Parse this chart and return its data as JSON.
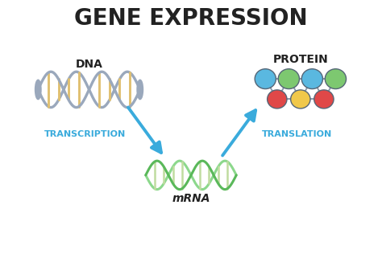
{
  "title": "GENE EXPRESSION",
  "title_fontsize": 20,
  "title_fontweight": "black",
  "dna_label": "DNA",
  "protein_label": "PROTEIN",
  "mrna_label": "mRNA",
  "transcription_label": "TRANSCRIPTION",
  "translation_label": "TRANSLATION",
  "label_color": "#3aabdc",
  "text_color": "#222222",
  "background_color": "#ffffff",
  "dna_strand_color": "#9aa8bc",
  "dna_rung_color": "#e0c070",
  "mrna_color1": "#5ab85a",
  "mrna_color2": "#8cd88c",
  "mrna_rung_color": "#c0dca0",
  "protein_top_colors": [
    "#5ab8e0",
    "#7dc870",
    "#5ab8e0",
    "#7dc870"
  ],
  "protein_bot_colors": [
    "#e04848",
    "#f0c84a",
    "#e04848"
  ],
  "arrow_color": "#3aabdc",
  "figsize": [
    4.74,
    3.16
  ],
  "dpi": 100
}
